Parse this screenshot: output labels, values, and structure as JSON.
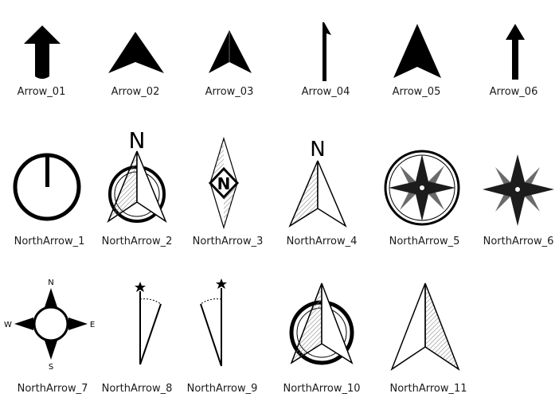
{
  "symbols": [
    {
      "label": "Arrow_01"
    },
    {
      "label": "Arrow_02"
    },
    {
      "label": "Arrow_03"
    },
    {
      "label": "Arrow_04"
    },
    {
      "label": "Arrow_05"
    },
    {
      "label": "Arrow_06"
    },
    {
      "label": "NorthArrow_1"
    },
    {
      "label": "NorthArrow_2",
      "glyph": "N"
    },
    {
      "label": "NorthArrow_3",
      "glyph": "N"
    },
    {
      "label": "NorthArrow_4",
      "glyph": "N"
    },
    {
      "label": "NorthArrow_5"
    },
    {
      "label": "NorthArrow_6"
    },
    {
      "label": "NorthArrow_7",
      "glyphs": {
        "n": "N",
        "s": "S",
        "e": "E",
        "w": "W"
      }
    },
    {
      "label": "NorthArrow_8"
    },
    {
      "label": "NorthArrow_9"
    },
    {
      "label": "NorthArrow_10"
    },
    {
      "label": "NorthArrow_11"
    }
  ],
  "colors": {
    "ink": "#000000",
    "dark_fill": "#1c1c1c",
    "grey_fill": "#6a6a6a",
    "hatch": "#888888"
  }
}
